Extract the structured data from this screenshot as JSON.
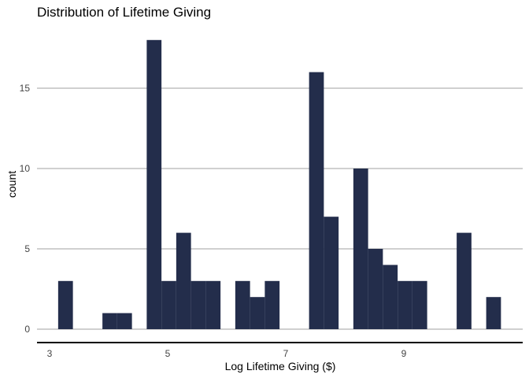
{
  "chart_data": {
    "type": "bar",
    "subtype": "histogram",
    "title": "Distribution of Lifetime Giving",
    "xlabel": "Log Lifetime Giving ($)",
    "ylabel": "count",
    "x_ticks": [
      3,
      5,
      7,
      9
    ],
    "y_ticks": [
      0,
      5,
      10,
      15
    ],
    "ylim": [
      0,
      18
    ],
    "grid": "horizontal major lines",
    "bar_color": "#232d4b",
    "bins": [
      {
        "x": 3.27,
        "count": 3
      },
      {
        "x": 3.52,
        "count": 0
      },
      {
        "x": 3.77,
        "count": 0
      },
      {
        "x": 4.02,
        "count": 1
      },
      {
        "x": 4.27,
        "count": 1
      },
      {
        "x": 4.52,
        "count": 0
      },
      {
        "x": 4.77,
        "count": 18
      },
      {
        "x": 5.02,
        "count": 3
      },
      {
        "x": 5.27,
        "count": 6
      },
      {
        "x": 5.52,
        "count": 3
      },
      {
        "x": 5.77,
        "count": 3
      },
      {
        "x": 6.02,
        "count": 0
      },
      {
        "x": 6.27,
        "count": 3
      },
      {
        "x": 6.52,
        "count": 2
      },
      {
        "x": 6.77,
        "count": 3
      },
      {
        "x": 7.02,
        "count": 0
      },
      {
        "x": 7.27,
        "count": 0
      },
      {
        "x": 7.52,
        "count": 16
      },
      {
        "x": 7.77,
        "count": 7
      },
      {
        "x": 8.02,
        "count": 0
      },
      {
        "x": 8.27,
        "count": 10
      },
      {
        "x": 8.52,
        "count": 5
      },
      {
        "x": 8.77,
        "count": 4
      },
      {
        "x": 9.02,
        "count": 3
      },
      {
        "x": 9.27,
        "count": 3
      },
      {
        "x": 9.52,
        "count": 0
      },
      {
        "x": 9.77,
        "count": 0
      },
      {
        "x": 10.02,
        "count": 6
      },
      {
        "x": 10.27,
        "count": 0
      },
      {
        "x": 10.52,
        "count": 2
      }
    ],
    "bin_width": 0.25
  }
}
